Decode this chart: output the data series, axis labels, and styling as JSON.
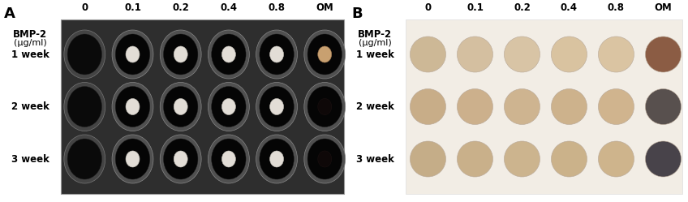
{
  "fig_width": 8.48,
  "fig_height": 2.49,
  "dpi": 100,
  "panel_A_label": "A",
  "panel_B_label": "B",
  "bmp2_label": "BMP-2",
  "ugml_label": "(μg/ml)",
  "concentrations": [
    "0",
    "0.1",
    "0.2",
    "0.4",
    "0.8",
    "OM"
  ],
  "timepoints": [
    "1 week",
    "2 week",
    "3 week"
  ],
  "panel_B_hydrogel_colors_row1": [
    "#cdb896",
    "#d4bfa0",
    "#d8c4a5",
    "#d9c3a0",
    "#dac4a2",
    "#8B5c44"
  ],
  "panel_B_hydrogel_colors_row2": [
    "#c8ad88",
    "#ccb08c",
    "#ceb490",
    "#cdb28c",
    "#d0b48e",
    "#58504e"
  ],
  "panel_B_hydrogel_colors_row3": [
    "#c5ad88",
    "#c9b08a",
    "#ccb48e",
    "#cbb28a",
    "#ceb48c",
    "#48434a"
  ],
  "panel_label_fontsize": 13,
  "tick_label_fontsize": 8.5,
  "timepoint_fontsize": 8.5
}
